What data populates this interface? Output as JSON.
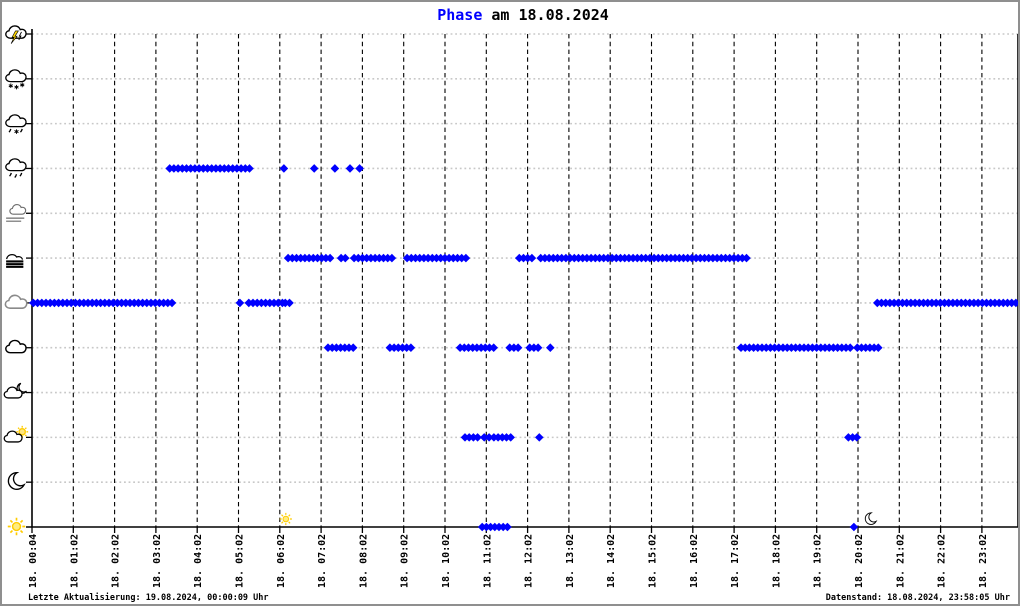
{
  "window": {
    "background": "#ffffff",
    "border_color": "#8f8f8f"
  },
  "title": {
    "accent": "Phase",
    "rest": " am 18.08.2024",
    "accent_color": "#0000ff",
    "text_color": "#000000"
  },
  "footer": {
    "left": "Letzte Aktualisierung: 19.08.2024, 00:00:09 Uhr",
    "right": "Datenstand: 18.08.2024, 23:58:05 Uhr"
  },
  "chart_data": {
    "type": "scatter",
    "title": "Phase am 18.08.2024",
    "point_color": "#0000ff",
    "grid": {
      "horizontal": "dotted-gray",
      "vertical": "dashed-black",
      "h_color": "#c8c8c8",
      "v_color": "#000000"
    },
    "x_axis": {
      "tick_labels": [
        "18. 00:04",
        "18. 01:02",
        "18. 02:02",
        "18. 03:02",
        "18. 04:02",
        "18. 05:02",
        "18. 06:02",
        "18. 07:02",
        "18. 08:02",
        "18. 09:02",
        "18. 10:02",
        "18. 11:02",
        "18. 12:02",
        "18. 13:02",
        "18. 14:02",
        "18. 15:02",
        "18. 16:02",
        "18. 17:02",
        "18. 18:02",
        "18. 19:02",
        "18. 20:02",
        "18. 21:02",
        "18. 22:02",
        "18. 23:02"
      ],
      "range": [
        "00:02",
        "23:58"
      ]
    },
    "y_axis": {
      "phases": [
        {
          "id": "thunderstorm",
          "icon": "thunderstorm-icon"
        },
        {
          "id": "snow",
          "icon": "snow-cloud-icon"
        },
        {
          "id": "sleet",
          "icon": "sleet-cloud-icon"
        },
        {
          "id": "rain",
          "icon": "rain-cloud-icon"
        },
        {
          "id": "mist",
          "icon": "mist-icon"
        },
        {
          "id": "fog",
          "icon": "fog-icon"
        },
        {
          "id": "overcast",
          "icon": "overcast-cloud-icon"
        },
        {
          "id": "cloudy",
          "icon": "cloudy-cloud-icon"
        },
        {
          "id": "partly-cloudy-night",
          "icon": "cloud-moon-icon"
        },
        {
          "id": "partly-cloudy-day",
          "icon": "cloud-sun-icon"
        },
        {
          "id": "clear-night",
          "icon": "moon-icon"
        },
        {
          "id": "clear-day",
          "icon": "sun-icon"
        }
      ]
    },
    "series": [
      {
        "phase": "rain",
        "segments": [
          {
            "from": "03:22",
            "to": "05:22"
          },
          {
            "from": "06:08",
            "to": "06:08"
          },
          {
            "from": "06:52",
            "to": "06:52"
          },
          {
            "from": "07:22",
            "to": "07:22"
          },
          {
            "from": "07:44",
            "to": "07:44"
          },
          {
            "from": "07:58",
            "to": "07:58"
          }
        ]
      },
      {
        "phase": "fog",
        "segments": [
          {
            "from": "06:14",
            "to": "07:21"
          },
          {
            "from": "07:31",
            "to": "07:42"
          },
          {
            "from": "07:50",
            "to": "08:48"
          },
          {
            "from": "09:07",
            "to": "10:34"
          },
          {
            "from": "11:50",
            "to": "12:13"
          },
          {
            "from": "12:21",
            "to": "17:21"
          }
        ]
      },
      {
        "phase": "overcast",
        "segments": [
          {
            "from": "00:04",
            "to": "03:30"
          },
          {
            "from": "05:04",
            "to": "05:04"
          },
          {
            "from": "05:17",
            "to": "06:07"
          },
          {
            "from": "06:10",
            "to": "06:21"
          },
          {
            "from": "20:30",
            "to": "23:58"
          }
        ]
      },
      {
        "phase": "cloudy",
        "segments": [
          {
            "from": "07:12",
            "to": "07:54"
          },
          {
            "from": "08:42",
            "to": "09:18"
          },
          {
            "from": "10:24",
            "to": "11:13"
          },
          {
            "from": "11:36",
            "to": "11:54"
          },
          {
            "from": "12:05",
            "to": "12:23"
          },
          {
            "from": "12:35",
            "to": "12:35"
          },
          {
            "from": "17:12",
            "to": "19:53"
          },
          {
            "from": "20:01",
            "to": "20:34"
          }
        ]
      },
      {
        "phase": "partly-cloudy-day",
        "segments": [
          {
            "from": "10:31",
            "to": "10:51"
          },
          {
            "from": "10:59",
            "to": "10:59"
          },
          {
            "from": "11:06",
            "to": "11:06"
          },
          {
            "from": "11:13",
            "to": "11:42"
          },
          {
            "from": "12:19",
            "to": "12:19"
          },
          {
            "from": "19:48",
            "to": "20:01"
          }
        ]
      },
      {
        "phase": "clear-day",
        "segments": [
          {
            "from": "10:56",
            "to": "11:36"
          },
          {
            "from": "19:56",
            "to": "19:56"
          }
        ]
      }
    ],
    "sun_moon_markers": [
      {
        "icon": "sunrise-sun-icon",
        "symbol": "clear-day",
        "time": "06:10"
      },
      {
        "icon": "sunset-moon-icon",
        "symbol": "clear-night",
        "time": "20:20"
      }
    ]
  }
}
